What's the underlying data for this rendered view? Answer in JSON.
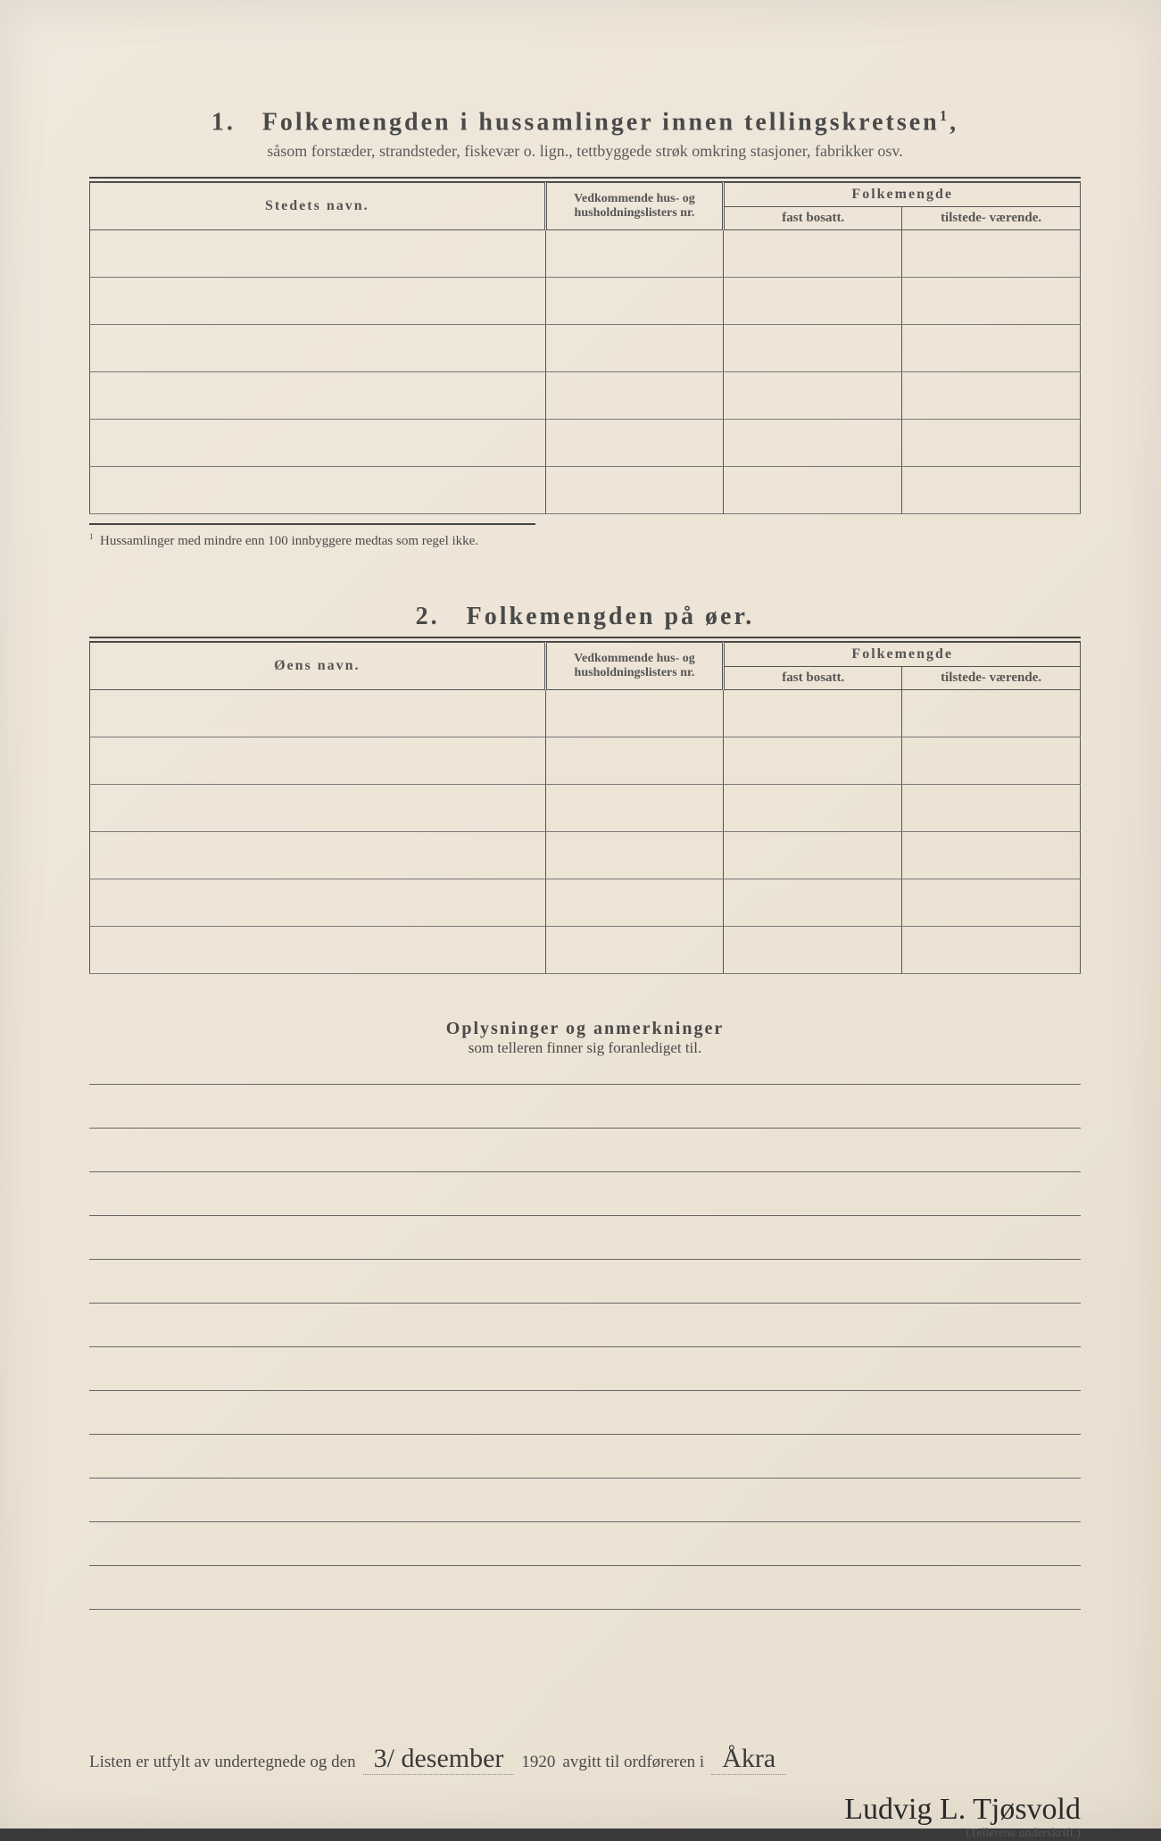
{
  "section1": {
    "number": "1.",
    "title": "Folkemengden i hussamlinger innen tellingskretsen",
    "title_sup": "1",
    "subtitle": "såsom forstæder, strandsteder, fiskevær o. lign., tettbyggede strøk omkring stasjoner, fabrikker osv.",
    "headers": {
      "name": "Stedets navn.",
      "ref": "Vedkommende hus- og husholdningslisters nr.",
      "pop": "Folkemengde",
      "fast": "fast bosatt.",
      "tilstede": "tilstede- værende."
    },
    "rows": [
      "",
      "",
      "",
      "",
      "",
      ""
    ],
    "footnote_marker": "1",
    "footnote": "Hussamlinger med mindre enn 100 innbyggere medtas som regel ikke."
  },
  "section2": {
    "number": "2.",
    "title": "Folkemengden på øer.",
    "headers": {
      "name": "Øens navn.",
      "ref": "Vedkommende hus- og husholdningslisters nr.",
      "pop": "Folkemengde",
      "fast": "fast bosatt.",
      "tilstede": "tilstede- værende."
    },
    "rows": [
      "",
      "",
      "",
      "",
      "",
      ""
    ]
  },
  "notes": {
    "title": "Oplysninger og anmerkninger",
    "subtitle": "som telleren finner sig foranlediget til.",
    "line_count": 12
  },
  "signature": {
    "prefix": "Listen er utfylt av undertegnede og den",
    "date_handwritten": "3/ desember",
    "year": "1920",
    "mid": "avgitt til ordføreren i",
    "place_handwritten": "Åkra",
    "name_handwritten": "Ludvig L. Tjøsvold",
    "caption": "(Tellerens underskrift.)"
  }
}
